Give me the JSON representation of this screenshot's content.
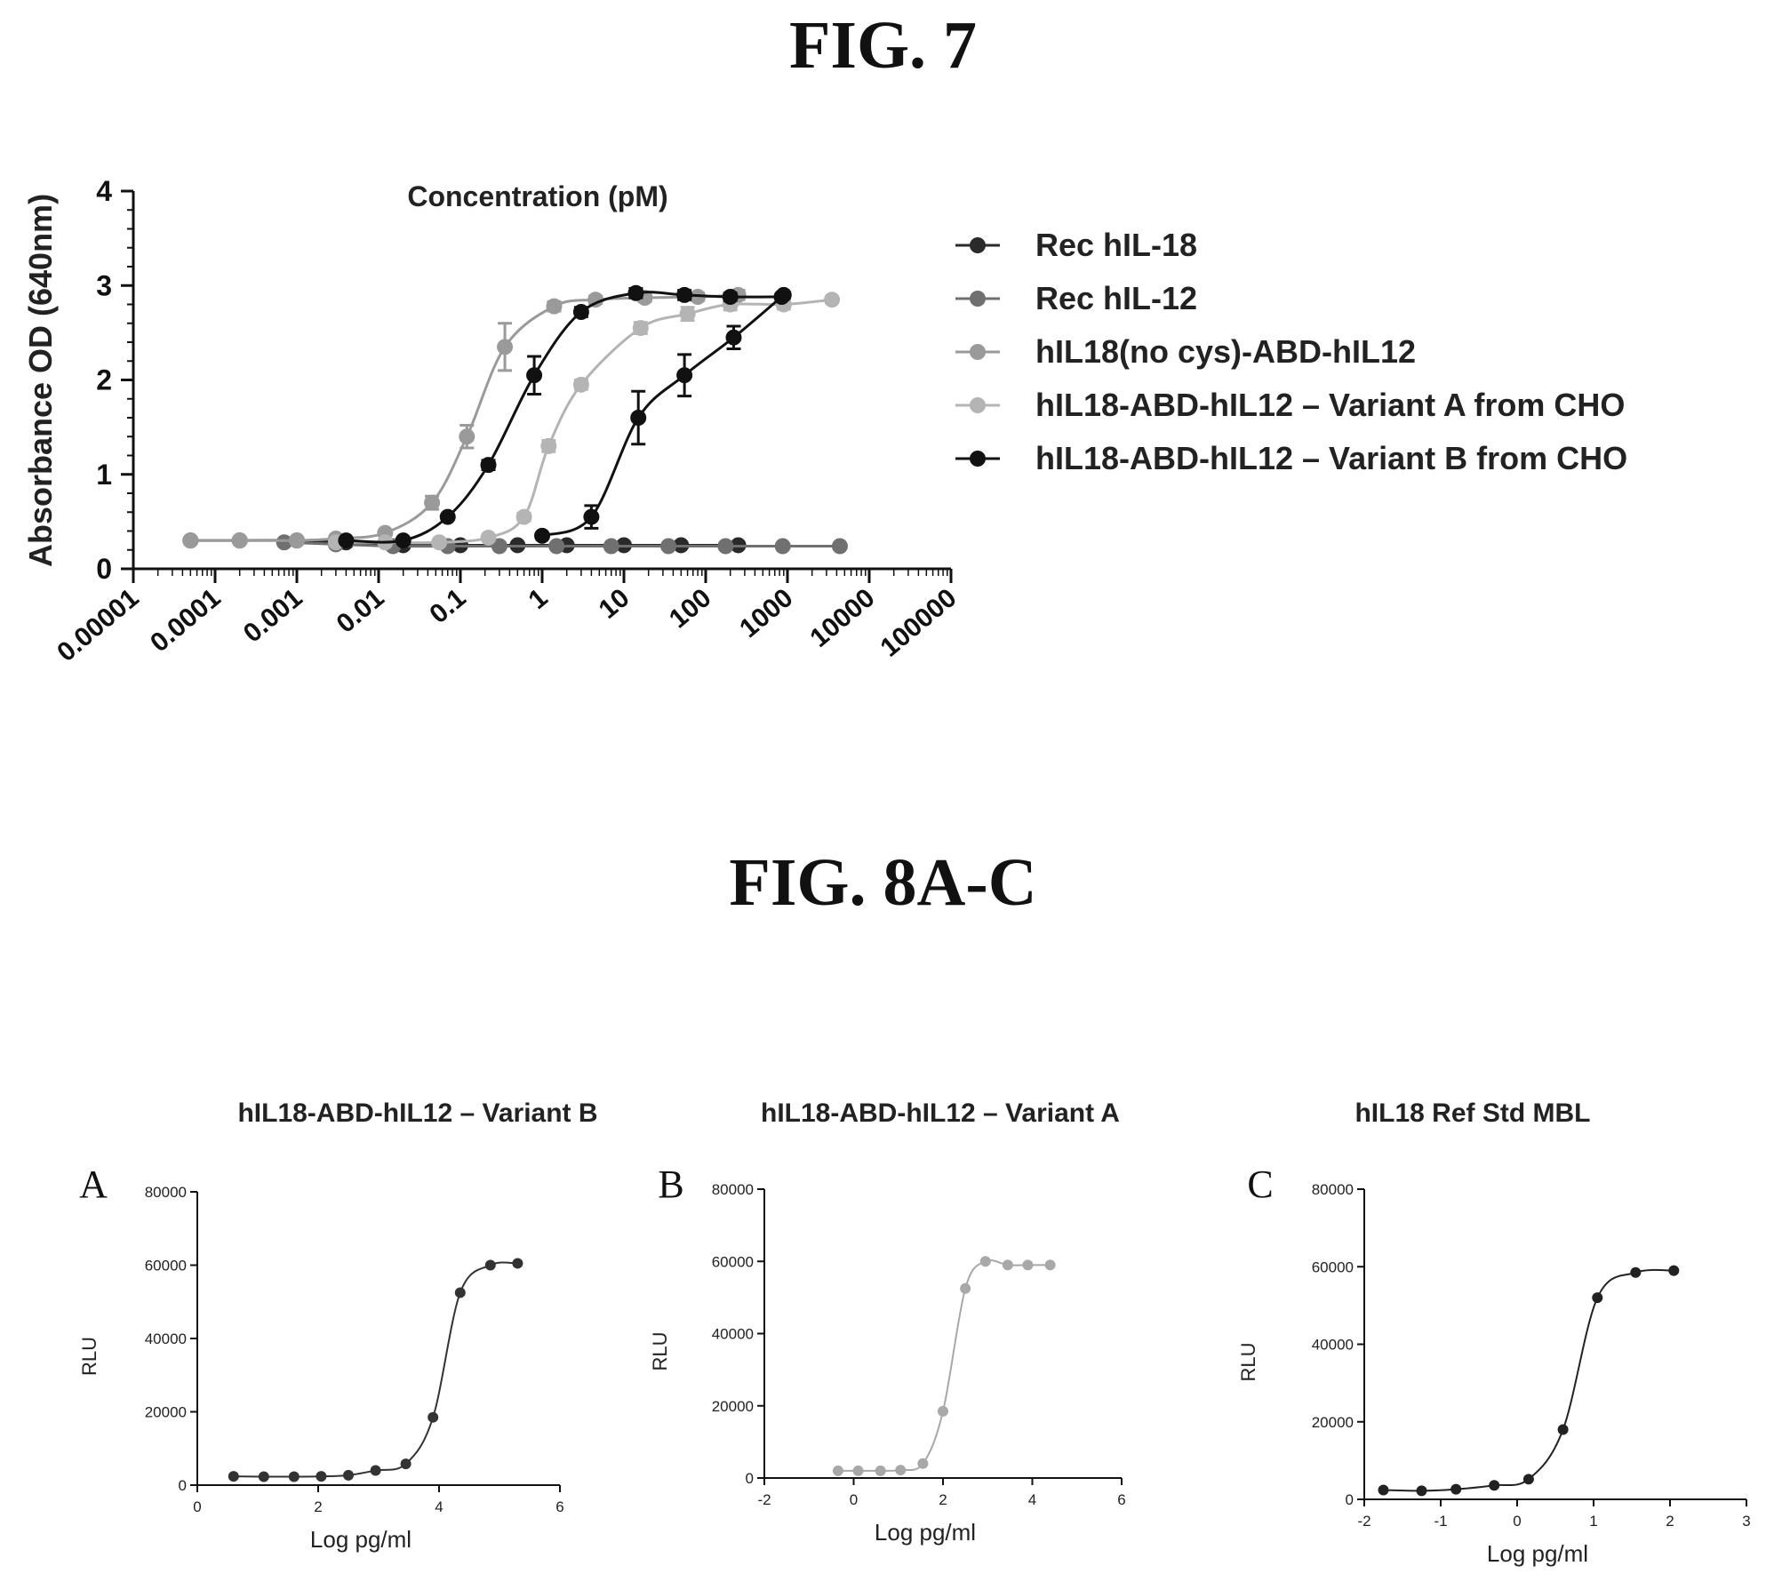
{
  "fig7": {
    "title": "FIG. 7",
    "chart_data": {
      "type": "scatter",
      "title": "Concentration (pM)",
      "xlabel": "",
      "ylabel": "Absorbance OD (640nm)",
      "xscale": "log",
      "xlim": [
        1e-05,
        100000
      ],
      "ylim": [
        0,
        4
      ],
      "xticks": [
        "0.00001",
        "0.0001",
        "0.001",
        "0.01",
        "0.1",
        "1",
        "10",
        "100",
        "1000",
        "10000",
        "100000"
      ],
      "yticks": [
        "0",
        "1",
        "2",
        "3",
        "4"
      ],
      "legend_position": "right",
      "series": [
        {
          "name": "Rec hIL-18",
          "color": "#2a2a2a",
          "x": [
            5e-05,
            0.0002,
            0.001,
            0.004,
            0.02,
            0.1,
            0.5,
            2,
            10,
            50,
            250
          ],
          "y": [
            0.3,
            0.3,
            0.3,
            0.28,
            0.25,
            0.25,
            0.25,
            0.25,
            0.25,
            0.25,
            0.25
          ]
        },
        {
          "name": "Rec hIL-12",
          "color": "#707070",
          "x": [
            0.0007,
            0.003,
            0.015,
            0.07,
            0.3,
            1.5,
            7,
            35,
            175,
            875,
            4375
          ],
          "y": [
            0.28,
            0.26,
            0.24,
            0.24,
            0.24,
            0.24,
            0.24,
            0.24,
            0.24,
            0.24,
            0.24
          ]
        },
        {
          "name": "hIL18(no cys)-ABD-hIL12",
          "color": "#9a9a9a",
          "x": [
            5e-05,
            0.0002,
            0.001,
            0.003,
            0.012,
            0.045,
            0.12,
            0.35,
            1.4,
            4.5,
            18,
            80,
            250
          ],
          "y": [
            0.3,
            0.3,
            0.3,
            0.32,
            0.38,
            0.7,
            1.4,
            2.35,
            2.78,
            2.85,
            2.87,
            2.88,
            2.9
          ],
          "err": [
            0,
            0,
            0,
            0,
            0,
            0.07,
            0.12,
            0.25,
            0.05,
            0.04,
            0.04,
            0.04,
            0.05
          ]
        },
        {
          "name": "hIL18-ABD-hIL12 – Variant A from CHO",
          "color": "#b4b4b4",
          "x": [
            0.003,
            0.012,
            0.055,
            0.22,
            0.6,
            1.2,
            3,
            16,
            60,
            200,
            900,
            3500
          ],
          "y": [
            0.28,
            0.28,
            0.28,
            0.33,
            0.55,
            1.3,
            1.95,
            2.55,
            2.7,
            2.8,
            2.8,
            2.85
          ],
          "err": [
            0,
            0,
            0,
            0,
            0.04,
            0.06,
            0.05,
            0.06,
            0.07,
            0.06,
            0.05,
            0.03
          ]
        },
        {
          "name": "hIL18-ABD-hIL12 – Variant B from CHO",
          "color": "#111111",
          "x": [
            0.004,
            0.02,
            0.07,
            0.22,
            0.8,
            3,
            14,
            55,
            200,
            850
          ],
          "y": [
            0.3,
            0.3,
            0.55,
            1.1,
            2.05,
            2.72,
            2.92,
            2.9,
            2.88,
            2.88
          ],
          "err": [
            0,
            0,
            0,
            0.05,
            0.2,
            0.05,
            0.05,
            0.05,
            0.04,
            0.03
          ]
        },
        {
          "name": "",
          "color": "#111111",
          "hidden_in_legend": true,
          "x": [
            1,
            4,
            15,
            55,
            220,
            900
          ],
          "y": [
            0.35,
            0.55,
            1.6,
            2.05,
            2.45,
            2.9
          ],
          "err": [
            0,
            0.12,
            0.28,
            0.22,
            0.12,
            0.03
          ]
        }
      ]
    }
  },
  "fig8": {
    "title": "FIG. 8A-C",
    "panels": [
      {
        "letter": "A",
        "chart_data": {
          "type": "scatter",
          "title": "hIL18-ABD-hIL12 – Variant B",
          "xlabel": "Log pg/ml",
          "ylabel": "RLU",
          "xlim": [
            0,
            6
          ],
          "ylim": [
            0,
            80000
          ],
          "xticks": [
            "0",
            "2",
            "4",
            "6"
          ],
          "yticks": [
            "0",
            "20000",
            "40000",
            "60000",
            "80000"
          ],
          "color": "#333333",
          "x": [
            0.6,
            1.1,
            1.6,
            2.05,
            2.5,
            2.95,
            3.45,
            3.9,
            4.35,
            4.85,
            5.3
          ],
          "y": [
            2400,
            2300,
            2300,
            2400,
            2700,
            4000,
            5800,
            18500,
            52500,
            60000,
            60500
          ]
        }
      },
      {
        "letter": "B",
        "chart_data": {
          "type": "scatter",
          "title": "hIL18-ABD-hIL12 – Variant A",
          "xlabel": "Log pg/ml",
          "ylabel": "RLU",
          "xlim": [
            -2,
            6
          ],
          "ylim": [
            0,
            80000
          ],
          "xticks": [
            "-2",
            "0",
            "2",
            "4",
            "6"
          ],
          "yticks": [
            "0",
            "20000",
            "40000",
            "60000",
            "80000"
          ],
          "color": "#a8a8a8",
          "x": [
            -0.35,
            0.1,
            0.6,
            1.05,
            1.55,
            2.0,
            2.5,
            2.95,
            3.45,
            3.9,
            4.4
          ],
          "y": [
            2000,
            2000,
            2000,
            2200,
            4000,
            18500,
            52500,
            60000,
            59000,
            59000,
            59000
          ]
        }
      },
      {
        "letter": "C",
        "chart_data": {
          "type": "scatter",
          "title": "hIL18 Ref Std MBL",
          "xlabel": "Log pg/ml",
          "ylabel": "RLU",
          "xlim": [
            -2,
            3
          ],
          "ylim": [
            0,
            80000
          ],
          "xticks": [
            "-2",
            "-1",
            "0",
            "1",
            "2",
            "3"
          ],
          "yticks": [
            "0",
            "20000",
            "40000",
            "60000",
            "80000"
          ],
          "color": "#222222",
          "x": [
            -1.75,
            -1.25,
            -0.8,
            -0.3,
            0.15,
            0.6,
            1.05,
            1.55,
            2.05
          ],
          "y": [
            2400,
            2200,
            2600,
            3600,
            5200,
            18000,
            52000,
            58500,
            59000
          ]
        }
      }
    ]
  }
}
